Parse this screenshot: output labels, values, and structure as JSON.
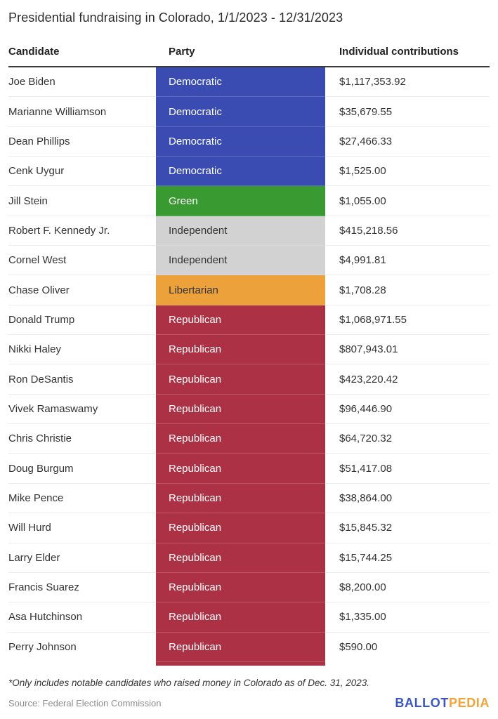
{
  "title": "Presidential fundraising in Colorado, 1/1/2023 - 12/31/2023",
  "table": {
    "columns": [
      "Candidate",
      "Party",
      "Individual contributions"
    ],
    "rows": [
      {
        "candidate": "Joe Biden",
        "party": "Democratic",
        "amount": "$1,117,353.92"
      },
      {
        "candidate": "Marianne Williamson",
        "party": "Democratic",
        "amount": "$35,679.55"
      },
      {
        "candidate": "Dean Phillips",
        "party": "Democratic",
        "amount": "$27,466.33"
      },
      {
        "candidate": "Cenk Uygur",
        "party": "Democratic",
        "amount": "$1,525.00"
      },
      {
        "candidate": "Jill Stein",
        "party": "Green",
        "amount": "$1,055.00"
      },
      {
        "candidate": "Robert F. Kennedy Jr.",
        "party": "Independent",
        "amount": "$415,218.56"
      },
      {
        "candidate": "Cornel West",
        "party": "Independent",
        "amount": "$4,991.81"
      },
      {
        "candidate": "Chase Oliver",
        "party": "Libertarian",
        "amount": "$1,708.28"
      },
      {
        "candidate": "Donald Trump",
        "party": "Republican",
        "amount": "$1,068,971.55"
      },
      {
        "candidate": "Nikki Haley",
        "party": "Republican",
        "amount": "$807,943.01"
      },
      {
        "candidate": "Ron DeSantis",
        "party": "Republican",
        "amount": "$423,220.42"
      },
      {
        "candidate": "Vivek Ramaswamy",
        "party": "Republican",
        "amount": "$96,446.90"
      },
      {
        "candidate": "Chris Christie",
        "party": "Republican",
        "amount": "$64,720.32"
      },
      {
        "candidate": "Doug Burgum",
        "party": "Republican",
        "amount": "$51,417.08"
      },
      {
        "candidate": "Mike Pence",
        "party": "Republican",
        "amount": "$38,864.00"
      },
      {
        "candidate": "Will Hurd",
        "party": "Republican",
        "amount": "$15,845.32"
      },
      {
        "candidate": "Larry Elder",
        "party": "Republican",
        "amount": "$15,744.25"
      },
      {
        "candidate": "Francis Suarez",
        "party": "Republican",
        "amount": "$8,200.00"
      },
      {
        "candidate": "Asa Hutchinson",
        "party": "Republican",
        "amount": "$1,335.00"
      },
      {
        "candidate": "Perry Johnson",
        "party": "Republican",
        "amount": "$590.00"
      }
    ]
  },
  "party_colors": {
    "Democratic": {
      "bg": "#3a4cb2",
      "text": "#ffffff"
    },
    "Green": {
      "bg": "#3a9a32",
      "text": "#ffffff"
    },
    "Independent": {
      "bg": "#d2d2d2",
      "text": "#333333"
    },
    "Libertarian": {
      "bg": "#eca13b",
      "text": "#333333"
    },
    "Republican": {
      "bg": "#ac3145",
      "text": "#ffffff"
    }
  },
  "footnote": "*Only includes notable candidates who raised money in Colorado as of Dec. 31, 2023.",
  "source": "Source: Federal Election Commission",
  "logo": {
    "part1": "BALLOT",
    "part2": "PEDIA",
    "color1": "#3b55c4",
    "color2": "#f2a33c"
  },
  "chart_data": {
    "type": "table",
    "title": "Presidential fundraising in Colorado, 1/1/2023 - 12/31/2023",
    "columns": [
      "Candidate",
      "Party",
      "Individual contributions"
    ],
    "rows": [
      [
        "Joe Biden",
        "Democratic",
        1117353.92
      ],
      [
        "Marianne Williamson",
        "Democratic",
        35679.55
      ],
      [
        "Dean Phillips",
        "Democratic",
        27466.33
      ],
      [
        "Cenk Uygur",
        "Democratic",
        1525.0
      ],
      [
        "Jill Stein",
        "Green",
        1055.0
      ],
      [
        "Robert F. Kennedy Jr.",
        "Independent",
        415218.56
      ],
      [
        "Cornel West",
        "Independent",
        4991.81
      ],
      [
        "Chase Oliver",
        "Libertarian",
        1708.28
      ],
      [
        "Donald Trump",
        "Republican",
        1068971.55
      ],
      [
        "Nikki Haley",
        "Republican",
        807943.01
      ],
      [
        "Ron DeSantis",
        "Republican",
        423220.42
      ],
      [
        "Vivek Ramaswamy",
        "Republican",
        96446.9
      ],
      [
        "Chris Christie",
        "Republican",
        64720.32
      ],
      [
        "Doug Burgum",
        "Republican",
        51417.08
      ],
      [
        "Mike Pence",
        "Republican",
        38864.0
      ],
      [
        "Will Hurd",
        "Republican",
        15845.32
      ],
      [
        "Larry Elder",
        "Republican",
        15744.25
      ],
      [
        "Francis Suarez",
        "Republican",
        8200.0
      ],
      [
        "Asa Hutchinson",
        "Republican",
        1335.0
      ],
      [
        "Perry Johnson",
        "Republican",
        590.0
      ]
    ],
    "notes": "Party column cells are color-coded by party; footnote restricts to notable candidates who raised money in Colorado as of Dec. 31, 2023."
  }
}
